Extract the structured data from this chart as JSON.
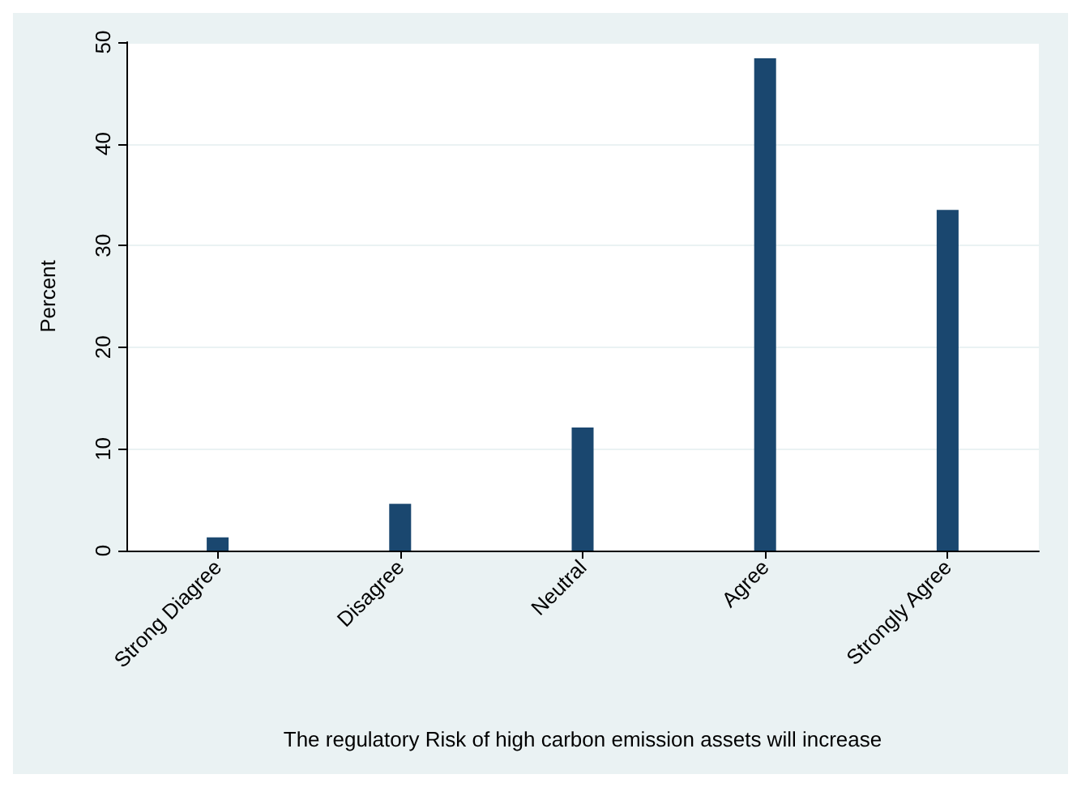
{
  "chart_data": {
    "type": "bar",
    "xlabel": "The regulatory Risk of high carbon emission assets will increase",
    "ylabel": "Percent",
    "categories": [
      "Strong Diagree",
      "Disagree",
      "Neutral",
      "Agree",
      "Strongly Agree"
    ],
    "values": [
      1.3,
      4.6,
      12.1,
      48.4,
      33.5
    ],
    "color": "#1a476f",
    "ylim": [
      0,
      50
    ],
    "yticks": [
      0,
      10,
      20,
      30,
      40,
      50
    ],
    "grid": "y"
  }
}
